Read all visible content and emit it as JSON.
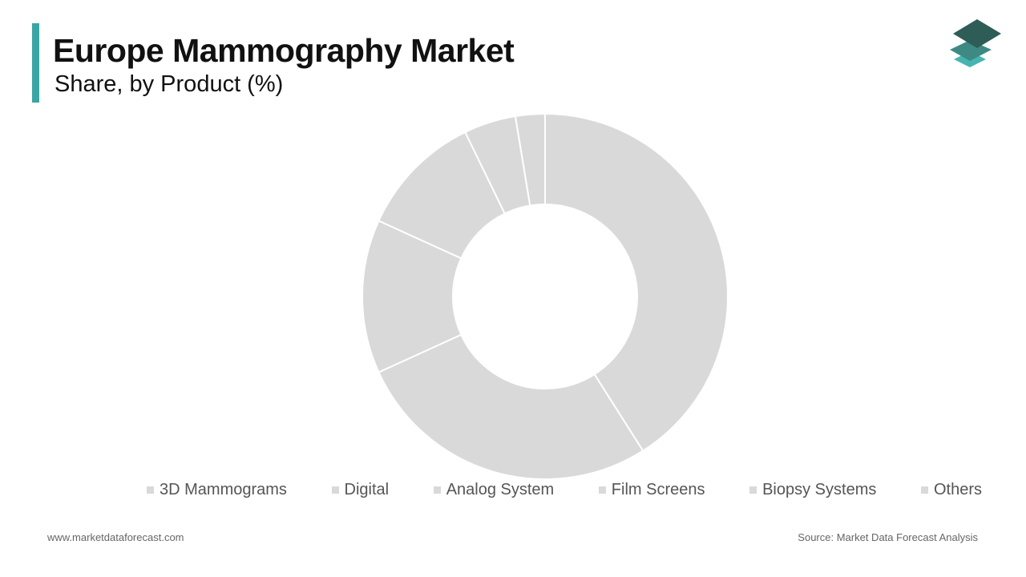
{
  "chart_data": {
    "type": "donut",
    "title": "Europe Mammography Market",
    "subtitle": "Share, by Product (%)",
    "categories": [
      "3D Mammograms",
      "Digital",
      "Analog System",
      "Film Screens",
      "Biopsy Systems",
      "Others"
    ],
    "values": [
      41,
      27.2,
      13.6,
      11,
      4.6,
      2.6
    ],
    "color": "#d9d9d9"
  },
  "footer": {
    "website": "www.marketdataforecast.com",
    "source": "Source: Market Data Forecast Analysis"
  }
}
